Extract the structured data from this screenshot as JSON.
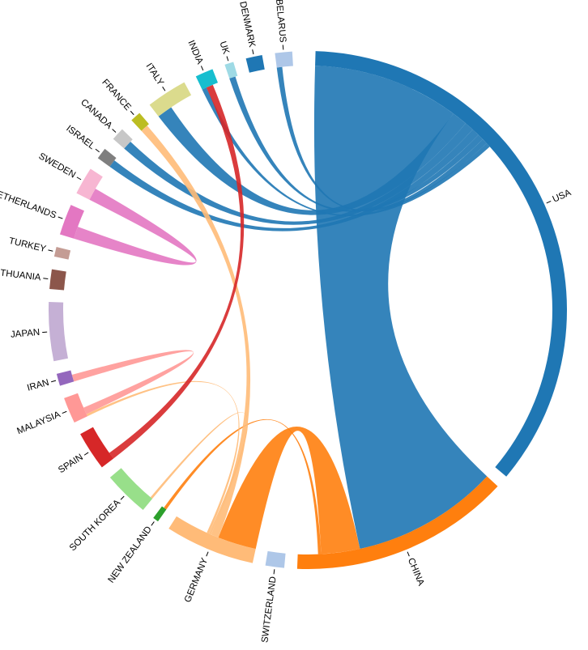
{
  "chart_data": {
    "type": "chord",
    "title": "",
    "countries": [
      {
        "name": "USA",
        "color": "#1f77b4",
        "weight": 70.0
      },
      {
        "name": "CHINA",
        "color": "#ff7f0e",
        "weight": 27.0
      },
      {
        "name": "SWITZERLAND",
        "color": "#aec7e8",
        "weight": 2.3
      },
      {
        "name": "GERMANY",
        "color": "#ffbb78",
        "weight": 11.0
      },
      {
        "name": "NEW ZEALAND",
        "color": "#2ca02c",
        "weight": 0.7
      },
      {
        "name": "SOUTH KOREA",
        "color": "#98df8a",
        "weight": 5.6
      },
      {
        "name": "SPAIN",
        "color": "#d62728",
        "weight": 4.8
      },
      {
        "name": "MALAYSIA",
        "color": "#ff9896",
        "weight": 3.2
      },
      {
        "name": "IRAN",
        "color": "#9467bd",
        "weight": 1.5
      },
      {
        "name": "JAPAN",
        "color": "#c5b0d5",
        "weight": 7.2
      },
      {
        "name": "LITHUANIA",
        "color": "#8c564b",
        "weight": 2.4
      },
      {
        "name": "TURKEY",
        "color": "#c49c94",
        "weight": 1.2
      },
      {
        "name": "NETHERLANDS",
        "color": "#e377c2",
        "weight": 3.8
      },
      {
        "name": "SWEDEN",
        "color": "#f7b6d2",
        "weight": 3.4
      },
      {
        "name": "ISRAEL",
        "color": "#7f7f7f",
        "weight": 1.4
      },
      {
        "name": "CANADA",
        "color": "#c7c7c7",
        "weight": 1.6
      },
      {
        "name": "FRANCE",
        "color": "#bcbd22",
        "weight": 1.3
      },
      {
        "name": "ITALY",
        "color": "#dbdb8d",
        "weight": 5.0
      },
      {
        "name": "INDIA",
        "color": "#17becf",
        "weight": 2.2
      },
      {
        "name": "UK",
        "color": "#9edae5",
        "weight": 1.1
      },
      {
        "name": "DENMARK",
        "color": "#1f77b4",
        "weight": 2.0
      },
      {
        "name": "BELARUS",
        "color": "#aec7e8",
        "weight": 2.1
      }
    ],
    "links": [
      {
        "source": "USA",
        "target": "CHINA",
        "value": 19.0
      },
      {
        "source": "USA",
        "target": "ITALY",
        "value": 2.0
      },
      {
        "source": "USA",
        "target": "CANADA",
        "value": 1.2
      },
      {
        "source": "USA",
        "target": "ISRAEL",
        "value": 1.0
      },
      {
        "source": "USA",
        "target": "UK",
        "value": 0.8
      },
      {
        "source": "USA",
        "target": "BELARUS",
        "value": 0.7
      },
      {
        "source": "USA",
        "target": "INDIA",
        "value": 0.6
      },
      {
        "source": "CHINA",
        "target": "GERMANY",
        "value": 5.0
      },
      {
        "source": "CHINA",
        "target": "NEW ZEALAND",
        "value": 0.4
      },
      {
        "source": "GERMANY",
        "target": "FRANCE",
        "value": 1.0
      },
      {
        "source": "GERMANY",
        "target": "SOUTH KOREA",
        "value": 0.3
      },
      {
        "source": "GERMANY",
        "target": "MALAYSIA",
        "value": 0.3
      },
      {
        "source": "SPAIN",
        "target": "INDIA",
        "value": 0.9
      },
      {
        "source": "IRAN",
        "target": "MALAYSIA",
        "value": 0.9
      },
      {
        "source": "SWEDEN",
        "target": "NETHERLANDS",
        "value": 1.6
      }
    ]
  }
}
